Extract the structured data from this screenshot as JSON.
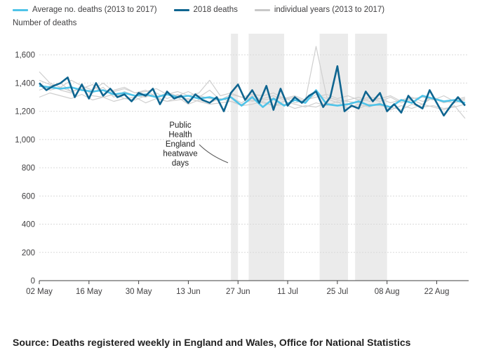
{
  "legend": [
    {
      "label": "Average no. deaths (2013 to 2017)",
      "color": "#4fc3e8"
    },
    {
      "label": "2018 deaths",
      "color": "#0f6590"
    },
    {
      "label": "individual years (2013 to 2017)",
      "color": "#c8c8c8"
    }
  ],
  "source": "Source: Deaths registered weekly in England and Wales, Office for National Statistics",
  "annotation_lines": [
    "Public",
    "Health",
    "England",
    "heatwave",
    "days"
  ],
  "chart_data": {
    "type": "line",
    "ylabel": "Number of deaths",
    "xlabel": "",
    "ylim": [
      0,
      1750
    ],
    "yticks": [
      0,
      200,
      400,
      600,
      800,
      1000,
      1200,
      1400,
      1600
    ],
    "ytick_labels": [
      "0",
      "200",
      "400",
      "600",
      "800",
      "1,000",
      "1,200",
      "1,400",
      "1,600"
    ],
    "x_start": "2018-05-02",
    "x_end": "2018-08-31",
    "xticks": [
      "2018-05-02",
      "2018-05-16",
      "2018-05-30",
      "2018-06-13",
      "2018-06-27",
      "2018-07-11",
      "2018-07-25",
      "2018-08-08",
      "2018-08-22"
    ],
    "xtick_labels": [
      "02 May",
      "16 May",
      "30 May",
      "13 Jun",
      "27 Jun",
      "11 Jul",
      "25 Jul",
      "08 Aug",
      "22 Aug"
    ],
    "heatwave_periods": [
      [
        "2018-06-25",
        "2018-06-26"
      ],
      [
        "2018-06-30",
        "2018-07-09"
      ],
      [
        "2018-07-20",
        "2018-07-27"
      ],
      [
        "2018-07-30",
        "2018-08-07"
      ]
    ],
    "grid": true,
    "legend_position": "top-left",
    "series": [
      {
        "name": "2018 deaths",
        "color": "#0f6590",
        "x": [
          "2018-05-02",
          "2018-05-04",
          "2018-05-06",
          "2018-05-08",
          "2018-05-10",
          "2018-05-12",
          "2018-05-14",
          "2018-05-16",
          "2018-05-18",
          "2018-05-20",
          "2018-05-22",
          "2018-05-24",
          "2018-05-26",
          "2018-05-28",
          "2018-05-30",
          "2018-06-01",
          "2018-06-03",
          "2018-06-05",
          "2018-06-07",
          "2018-06-09",
          "2018-06-11",
          "2018-06-13",
          "2018-06-15",
          "2018-06-17",
          "2018-06-19",
          "2018-06-21",
          "2018-06-23",
          "2018-06-25",
          "2018-06-27",
          "2018-06-29",
          "2018-07-01",
          "2018-07-03",
          "2018-07-05",
          "2018-07-07",
          "2018-07-09",
          "2018-07-11",
          "2018-07-13",
          "2018-07-15",
          "2018-07-17",
          "2018-07-19",
          "2018-07-21",
          "2018-07-23",
          "2018-07-25",
          "2018-07-27",
          "2018-07-29",
          "2018-07-31",
          "2018-08-02",
          "2018-08-04",
          "2018-08-06",
          "2018-08-08",
          "2018-08-10",
          "2018-08-12",
          "2018-08-14",
          "2018-08-16",
          "2018-08-18",
          "2018-08-20",
          "2018-08-22",
          "2018-08-24",
          "2018-08-26",
          "2018-08-28",
          "2018-08-30"
        ],
        "values": [
          1400,
          1350,
          1380,
          1400,
          1440,
          1300,
          1390,
          1290,
          1400,
          1310,
          1360,
          1300,
          1320,
          1270,
          1330,
          1310,
          1360,
          1250,
          1340,
          1290,
          1310,
          1260,
          1320,
          1280,
          1260,
          1300,
          1200,
          1330,
          1390,
          1280,
          1350,
          1260,
          1380,
          1210,
          1360,
          1240,
          1300,
          1260,
          1310,
          1340,
          1230,
          1300,
          1520,
          1200,
          1240,
          1220,
          1340,
          1270,
          1330,
          1200,
          1250,
          1190,
          1310,
          1250,
          1220,
          1350,
          1260,
          1170,
          1240,
          1300,
          1240
        ]
      },
      {
        "name": "Average no. deaths (2013 to 2017)",
        "color": "#4fc3e8",
        "x": [
          "2018-05-02",
          "2018-05-05",
          "2018-05-08",
          "2018-05-11",
          "2018-05-14",
          "2018-05-17",
          "2018-05-20",
          "2018-05-23",
          "2018-05-26",
          "2018-05-29",
          "2018-06-01",
          "2018-06-04",
          "2018-06-07",
          "2018-06-10",
          "2018-06-13",
          "2018-06-16",
          "2018-06-19",
          "2018-06-22",
          "2018-06-25",
          "2018-06-28",
          "2018-07-01",
          "2018-07-04",
          "2018-07-07",
          "2018-07-10",
          "2018-07-13",
          "2018-07-16",
          "2018-07-19",
          "2018-07-22",
          "2018-07-25",
          "2018-07-28",
          "2018-07-31",
          "2018-08-03",
          "2018-08-06",
          "2018-08-09",
          "2018-08-12",
          "2018-08-15",
          "2018-08-18",
          "2018-08-21",
          "2018-08-24",
          "2018-08-27",
          "2018-08-30"
        ],
        "values": [
          1380,
          1370,
          1360,
          1370,
          1350,
          1340,
          1350,
          1320,
          1330,
          1310,
          1320,
          1300,
          1320,
          1300,
          1310,
          1290,
          1300,
          1280,
          1300,
          1240,
          1300,
          1230,
          1290,
          1240,
          1280,
          1260,
          1350,
          1250,
          1240,
          1250,
          1270,
          1240,
          1250,
          1230,
          1280,
          1260,
          1310,
          1290,
          1270,
          1280,
          1260
        ]
      }
    ],
    "background_series_name": "individual years (2013 to 2017)",
    "background_series": [
      [
        1420,
        1390,
        1350,
        1330,
        1380,
        1310,
        1300,
        1320,
        1290,
        1280,
        1310,
        1300,
        1270,
        1280,
        1290,
        1270,
        1250,
        1260,
        1270,
        1240,
        1250,
        1270,
        1240,
        1250,
        1220,
        1240,
        1230,
        1260,
        1240,
        1250,
        1220,
        1250,
        1240,
        1230,
        1210,
        1250,
        1230,
        1240,
        1220,
        1230,
        1250
      ],
      [
        1350,
        1380,
        1400,
        1340,
        1360,
        1330,
        1370,
        1300,
        1340,
        1310,
        1300,
        1330,
        1290,
        1320,
        1280,
        1310,
        1290,
        1280,
        1300,
        1260,
        1310,
        1280,
        1290,
        1300,
        1260,
        1280,
        1660,
        1300,
        1280,
        1270,
        1260,
        1290,
        1270,
        1300,
        1260,
        1280,
        1250,
        1300,
        1270,
        1260,
        1280
      ],
      [
        1480,
        1400,
        1370,
        1420,
        1380,
        1350,
        1400,
        1340,
        1360,
        1330,
        1350,
        1300,
        1330,
        1310,
        1340,
        1300,
        1350,
        1280,
        1320,
        1300,
        1270,
        1290,
        1310,
        1280,
        1300,
        1270,
        1320,
        1290,
        1260,
        1280,
        1300,
        1270,
        1290,
        1260,
        1280,
        1300,
        1270,
        1290,
        1260,
        1280,
        1300
      ],
      [
        1300,
        1330,
        1310,
        1290,
        1320,
        1280,
        1300,
        1270,
        1290,
        1300,
        1260,
        1290,
        1270,
        1300,
        1250,
        1280,
        1260,
        1290,
        1270,
        1250,
        1280,
        1260,
        1240,
        1270,
        1250,
        1230,
        1260,
        1240,
        1270,
        1220,
        1250,
        1230,
        1260,
        1210,
        1240,
        1220,
        1250,
        1230,
        1210,
        1240,
        1150
      ],
      [
        1400,
        1350,
        1370,
        1340,
        1360,
        1390,
        1320,
        1350,
        1370,
        1330,
        1340,
        1360,
        1320,
        1340,
        1310,
        1330,
        1420,
        1310,
        1330,
        1300,
        1320,
        1310,
        1330,
        1290,
        1310,
        1280,
        1300,
        1320,
        1290,
        1310,
        1280,
        1300,
        1290,
        1310,
        1270,
        1290,
        1300,
        1280,
        1310,
        1270,
        1290
      ]
    ]
  }
}
